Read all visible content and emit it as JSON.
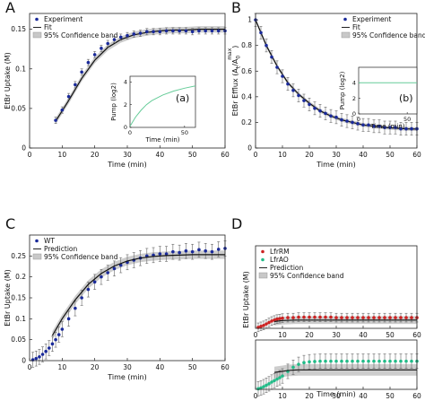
{
  "figure": {
    "background": "#ffffff"
  },
  "chart_data": [
    {
      "panel": "A",
      "type": "line",
      "xlabel": "Time (min)",
      "ylabel": "EtBr Uptake (M)",
      "xlim": [
        0,
        60
      ],
      "ylim": [
        0,
        0.17
      ],
      "xticks": [
        "0",
        "10",
        "20",
        "30",
        "40",
        "50",
        "60"
      ],
      "yticks": [
        "0",
        "0.05",
        "0.1",
        "0.15"
      ],
      "yticks_values": [
        0,
        0.05,
        0.1,
        0.15
      ],
      "legend_position": "top-left",
      "legend": [
        "Experiment",
        "Fit",
        "95% Confidence band"
      ],
      "series": [
        {
          "name": "Experiment",
          "style": "dots-errorbars",
          "x": [
            8,
            10,
            12,
            14,
            16,
            18,
            20,
            22,
            24,
            26,
            28,
            30,
            32,
            34,
            36,
            38,
            40,
            42,
            44,
            46,
            48,
            50,
            52,
            54,
            56,
            58,
            60
          ],
          "values": [
            0.035,
            0.048,
            0.065,
            0.08,
            0.096,
            0.108,
            0.118,
            0.126,
            0.132,
            0.137,
            0.14,
            0.142,
            0.144,
            0.145,
            0.147,
            0.147,
            0.147,
            0.148,
            0.148,
            0.148,
            0.148,
            0.147,
            0.148,
            0.148,
            0.148,
            0.148,
            0.148
          ],
          "err": 0.004
        },
        {
          "name": "Fit",
          "style": "line",
          "x": [
            8,
            12,
            16,
            20,
            24,
            28,
            32,
            36,
            40,
            44,
            48,
            52,
            56,
            60
          ],
          "values": [
            0.034,
            0.06,
            0.088,
            0.111,
            0.127,
            0.137,
            0.143,
            0.146,
            0.148,
            0.149,
            0.149,
            0.15,
            0.15,
            0.15
          ]
        }
      ],
      "band_width": 0.004,
      "inset": {
        "letter": "(a)",
        "xlabel": "Time (min)",
        "ylabel": "Pump (log2)",
        "xlim": [
          0,
          60
        ],
        "ylim": [
          0,
          4.5
        ],
        "xticks": [
          "0",
          "50"
        ],
        "yticks": [
          "0",
          "2",
          "4"
        ],
        "color": "#66cc99",
        "x": [
          0,
          5,
          10,
          15,
          20,
          30,
          40,
          50,
          60
        ],
        "values": [
          0.1,
          0.9,
          1.5,
          2.0,
          2.35,
          2.85,
          3.2,
          3.45,
          3.65
        ]
      }
    },
    {
      "panel": "B",
      "type": "line",
      "xlabel": "Time (min)",
      "ylabel": "EtBr Efflux (A",
      "ylabel_sub": "t",
      "ylabel_mid": "/A",
      "ylabel_sub2": "0",
      "ylabel_sup": "max",
      "ylabel_end": ")",
      "xlim": [
        0,
        60
      ],
      "ylim": [
        0,
        1.05
      ],
      "xticks": [
        "0",
        "10",
        "20",
        "30",
        "40",
        "50",
        "60"
      ],
      "yticks": [
        "0",
        "0.2",
        "0.4",
        "0.6",
        "0.8",
        "1"
      ],
      "yticks_values": [
        0,
        0.2,
        0.4,
        0.6,
        0.8,
        1
      ],
      "legend_position": "top-right",
      "legend": [
        "Experiment",
        "Fit",
        "95% Confidence band"
      ],
      "series": [
        {
          "name": "Experiment",
          "style": "dots-errorbars",
          "x": [
            0,
            2,
            4,
            6,
            8,
            10,
            12,
            14,
            16,
            18,
            20,
            22,
            24,
            26,
            28,
            30,
            32,
            34,
            36,
            38,
            40,
            42,
            44,
            46,
            48,
            50,
            52,
            54,
            56,
            58,
            60
          ],
          "values": [
            1.0,
            0.9,
            0.8,
            0.71,
            0.63,
            0.56,
            0.5,
            0.45,
            0.41,
            0.37,
            0.34,
            0.31,
            0.29,
            0.27,
            0.25,
            0.24,
            0.22,
            0.21,
            0.2,
            0.19,
            0.18,
            0.18,
            0.17,
            0.17,
            0.16,
            0.16,
            0.16,
            0.15,
            0.15,
            0.15,
            0.15
          ],
          "err": 0.05
        },
        {
          "name": "Fit",
          "style": "line",
          "x": [
            0,
            4,
            8,
            12,
            16,
            20,
            24,
            28,
            32,
            36,
            40,
            44,
            48,
            52,
            56,
            60
          ],
          "values": [
            1.0,
            0.8,
            0.64,
            0.51,
            0.42,
            0.35,
            0.29,
            0.25,
            0.22,
            0.2,
            0.18,
            0.17,
            0.16,
            0.155,
            0.15,
            0.148
          ]
        }
      ],
      "band_width": 0.015,
      "inset": {
        "letter": "(b)",
        "xlabel": "Time (min)",
        "ylabel": "Pump (log2)",
        "xlim": [
          0,
          60
        ],
        "ylim": [
          0,
          6
        ],
        "xticks": [
          "0",
          "50"
        ],
        "yticks": [
          "0",
          "2",
          "4"
        ],
        "color": "#66cc99",
        "x": [
          0,
          10,
          20,
          30,
          40,
          50,
          60
        ],
        "values": [
          4.0,
          4.0,
          4.0,
          4.0,
          4.0,
          4.0,
          4.0
        ]
      }
    },
    {
      "panel": "C",
      "type": "line",
      "xlabel": "Time (min)",
      "ylabel": "EtBr Uptake (M)",
      "xlim": [
        0,
        60
      ],
      "ylim": [
        0,
        0.3
      ],
      "xticks": [
        "0",
        "10",
        "20",
        "30",
        "40",
        "50",
        "60"
      ],
      "yticks": [
        "0",
        "0.05",
        "0.1",
        "0.15",
        "0.2",
        "0.25"
      ],
      "yticks_values": [
        0,
        0.05,
        0.1,
        0.15,
        0.2,
        0.25
      ],
      "legend_position": "top-left",
      "legend": [
        "WT",
        "Prediction",
        "95% Confidence band"
      ],
      "series": [
        {
          "name": "WT",
          "style": "dots-errorbars",
          "x": [
            1,
            2,
            3,
            4,
            5,
            6,
            7,
            8,
            9,
            10,
            12,
            14,
            16,
            18,
            20,
            22,
            24,
            26,
            28,
            30,
            32,
            34,
            36,
            38,
            40,
            42,
            44,
            46,
            48,
            50,
            52,
            54,
            56,
            58,
            60
          ],
          "values": [
            0.002,
            0.005,
            0.009,
            0.015,
            0.022,
            0.03,
            0.04,
            0.05,
            0.062,
            0.075,
            0.1,
            0.125,
            0.15,
            0.17,
            0.188,
            0.2,
            0.21,
            0.22,
            0.228,
            0.235,
            0.24,
            0.245,
            0.25,
            0.252,
            0.255,
            0.255,
            0.26,
            0.258,
            0.262,
            0.26,
            0.265,
            0.262,
            0.26,
            0.266,
            0.268
          ],
          "err": 0.018
        },
        {
          "name": "Prediction",
          "style": "line",
          "x": [
            7,
            10,
            14,
            18,
            22,
            26,
            30,
            34,
            38,
            42,
            46,
            50,
            54,
            58,
            60
          ],
          "values": [
            0.06,
            0.1,
            0.145,
            0.182,
            0.208,
            0.226,
            0.238,
            0.245,
            0.249,
            0.251,
            0.252,
            0.253,
            0.253,
            0.253,
            0.253
          ]
        }
      ],
      "band_width": 0.01
    },
    {
      "panel": "D",
      "type": "line",
      "xlabel": "Time (min)",
      "ylabel": "EtBr Uptake (M)",
      "xlim": [
        0,
        60
      ],
      "xticks": [
        "0",
        "10",
        "20",
        "30",
        "40",
        "50",
        "60"
      ],
      "legend_position": "top-left",
      "legend": [
        "LfrRM",
        "LfrAO",
        "Prediction",
        "95% Confidence band"
      ],
      "colors": {
        "LfrRM": "#cc2222",
        "LfrAO": "#22bb88"
      },
      "subplots": [
        {
          "ylim": [
            0,
            0.17
          ],
          "series": [
            {
              "name": "LfrRM",
              "style": "dots-errorbars",
              "x": [
                1,
                2,
                3,
                4,
                5,
                6,
                7,
                8,
                9,
                10,
                12,
                14,
                16,
                18,
                20,
                22,
                24,
                26,
                28,
                30,
                32,
                34,
                36,
                38,
                40,
                42,
                44,
                46,
                48,
                50,
                52,
                54,
                56,
                58,
                60
              ],
              "values": [
                0.002,
                0.004,
                0.006,
                0.009,
                0.012,
                0.015,
                0.017,
                0.019,
                0.02,
                0.021,
                0.022,
                0.022,
                0.023,
                0.023,
                0.023,
                0.023,
                0.023,
                0.023,
                0.023,
                0.022,
                0.022,
                0.022,
                0.022,
                0.022,
                0.022,
                0.022,
                0.022,
                0.022,
                0.022,
                0.022,
                0.022,
                0.022,
                0.022,
                0.022,
                0.022
              ],
              "err": 0.009
            },
            {
              "name": "Prediction",
              "style": "line",
              "x": [
                7,
                10,
                15,
                20,
                30,
                40,
                50,
                60
              ],
              "values": [
                0.014,
                0.016,
                0.017,
                0.017,
                0.017,
                0.017,
                0.017,
                0.017
              ]
            }
          ],
          "band_width": 0.008
        },
        {
          "ylim": [
            0,
            0.17
          ],
          "series": [
            {
              "name": "LfrAO",
              "style": "dots-errorbars",
              "x": [
                1,
                2,
                3,
                4,
                5,
                6,
                7,
                8,
                9,
                10,
                12,
                14,
                16,
                18,
                20,
                22,
                24,
                26,
                28,
                30,
                32,
                34,
                36,
                38,
                40,
                42,
                44,
                46,
                48,
                50,
                52,
                54,
                56,
                58,
                60
              ],
              "values": [
                0.002,
                0.005,
                0.009,
                0.014,
                0.019,
                0.025,
                0.03,
                0.035,
                0.04,
                0.046,
                0.062,
                0.076,
                0.086,
                0.092,
                0.095,
                0.096,
                0.097,
                0.097,
                0.097,
                0.097,
                0.097,
                0.097,
                0.097,
                0.097,
                0.097,
                0.097,
                0.097,
                0.097,
                0.097,
                0.097,
                0.097,
                0.097,
                0.097,
                0.097,
                0.097
              ],
              "err": 0.025
            },
            {
              "name": "Prediction",
              "style": "line",
              "x": [
                7,
                10,
                12,
                14,
                16,
                18,
                20,
                25,
                30,
                40,
                50,
                60
              ],
              "values": [
                0.058,
                0.062,
                0.065,
                0.066,
                0.067,
                0.067,
                0.067,
                0.067,
                0.067,
                0.067,
                0.067,
                0.067
              ]
            }
          ],
          "band_width": 0.02
        }
      ]
    }
  ]
}
